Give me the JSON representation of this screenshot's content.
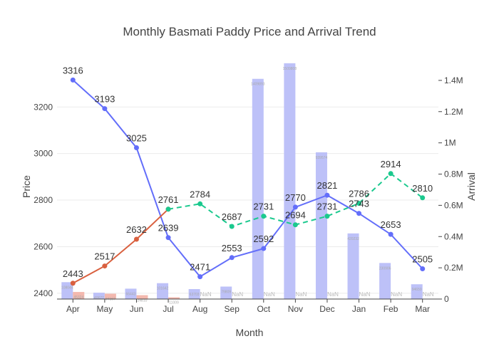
{
  "chart_data": {
    "type": "bar+line",
    "title": "Monthly Basmati Paddy Price and Arrival Trend",
    "xlabel": "Month",
    "ylabel_left": "Price",
    "ylabel_right": "Arrival",
    "categories": [
      "Apr",
      "May",
      "Jun",
      "Jul",
      "Aug",
      "Sep",
      "Oct",
      "Nov",
      "Dec",
      "Jan",
      "Feb",
      "Mar"
    ],
    "ylim_left": [
      2375,
      3415
    ],
    "ylim_right": [
      0,
      1550000
    ],
    "yticks_left": [
      "2400",
      "2600",
      "2800",
      "3000",
      "3200"
    ],
    "yticks_right": [
      "0",
      "0.2M",
      "0.4M",
      "0.6M",
      "0.8M",
      "1M",
      "1.2M",
      "1.4M"
    ],
    "bar_series": [
      {
        "color": "#BDC1F8",
        "values": [
          108044,
          40677,
          66443,
          101642,
          63703,
          79809,
          1409893,
          1509808,
          939574,
          420232,
          230906,
          94659
        ],
        "labels": [
          "108044",
          "40677",
          "66443",
          "101642",
          "63703",
          "79809",
          "1409893",
          "1509808",
          "939574",
          "420232",
          "230906",
          "94659"
        ]
      },
      {
        "color": "#F3B8AE",
        "values": [
          45324,
          34167,
          24810,
          11009,
          null,
          null,
          null,
          null,
          null,
          null,
          null,
          null
        ],
        "labels": [
          "45324",
          "34167",
          "24810",
          "11009",
          "NaN",
          "NaN",
          "NaN",
          "NaN",
          "NaN",
          "NaN",
          "NaN",
          "NaN"
        ]
      }
    ],
    "line_series": [
      {
        "color": "#636EFA",
        "dash": "solid",
        "values": [
          3316,
          3193,
          3025,
          2639,
          2471,
          2553,
          2592,
          2770,
          2821,
          2743,
          2653,
          2505
        ],
        "labels": [
          "3316",
          "3193",
          "3025",
          "2639",
          "2471",
          "2553",
          "2592",
          "2770",
          "2821",
          "2743",
          "2653",
          "2505"
        ]
      },
      {
        "color": "#D9603F",
        "dash": "solid",
        "values": [
          2443,
          2517,
          2632,
          2761,
          null,
          null,
          null,
          null,
          null,
          null,
          null,
          null
        ],
        "labels": [
          "2443",
          "2517",
          "2632",
          "2761",
          "",
          "",
          "",
          "",
          "",
          "",
          "",
          ""
        ]
      },
      {
        "color": "#1BC98E",
        "dash": "dashed",
        "values": [
          null,
          null,
          null,
          2761,
          2784,
          2687,
          2731,
          2694,
          2731,
          2786,
          2914,
          2810
        ],
        "labels": [
          "",
          "",
          "",
          "",
          "2784",
          "2687",
          "2731",
          "2694",
          "2731",
          "2786",
          "2914",
          "2810"
        ]
      }
    ]
  }
}
